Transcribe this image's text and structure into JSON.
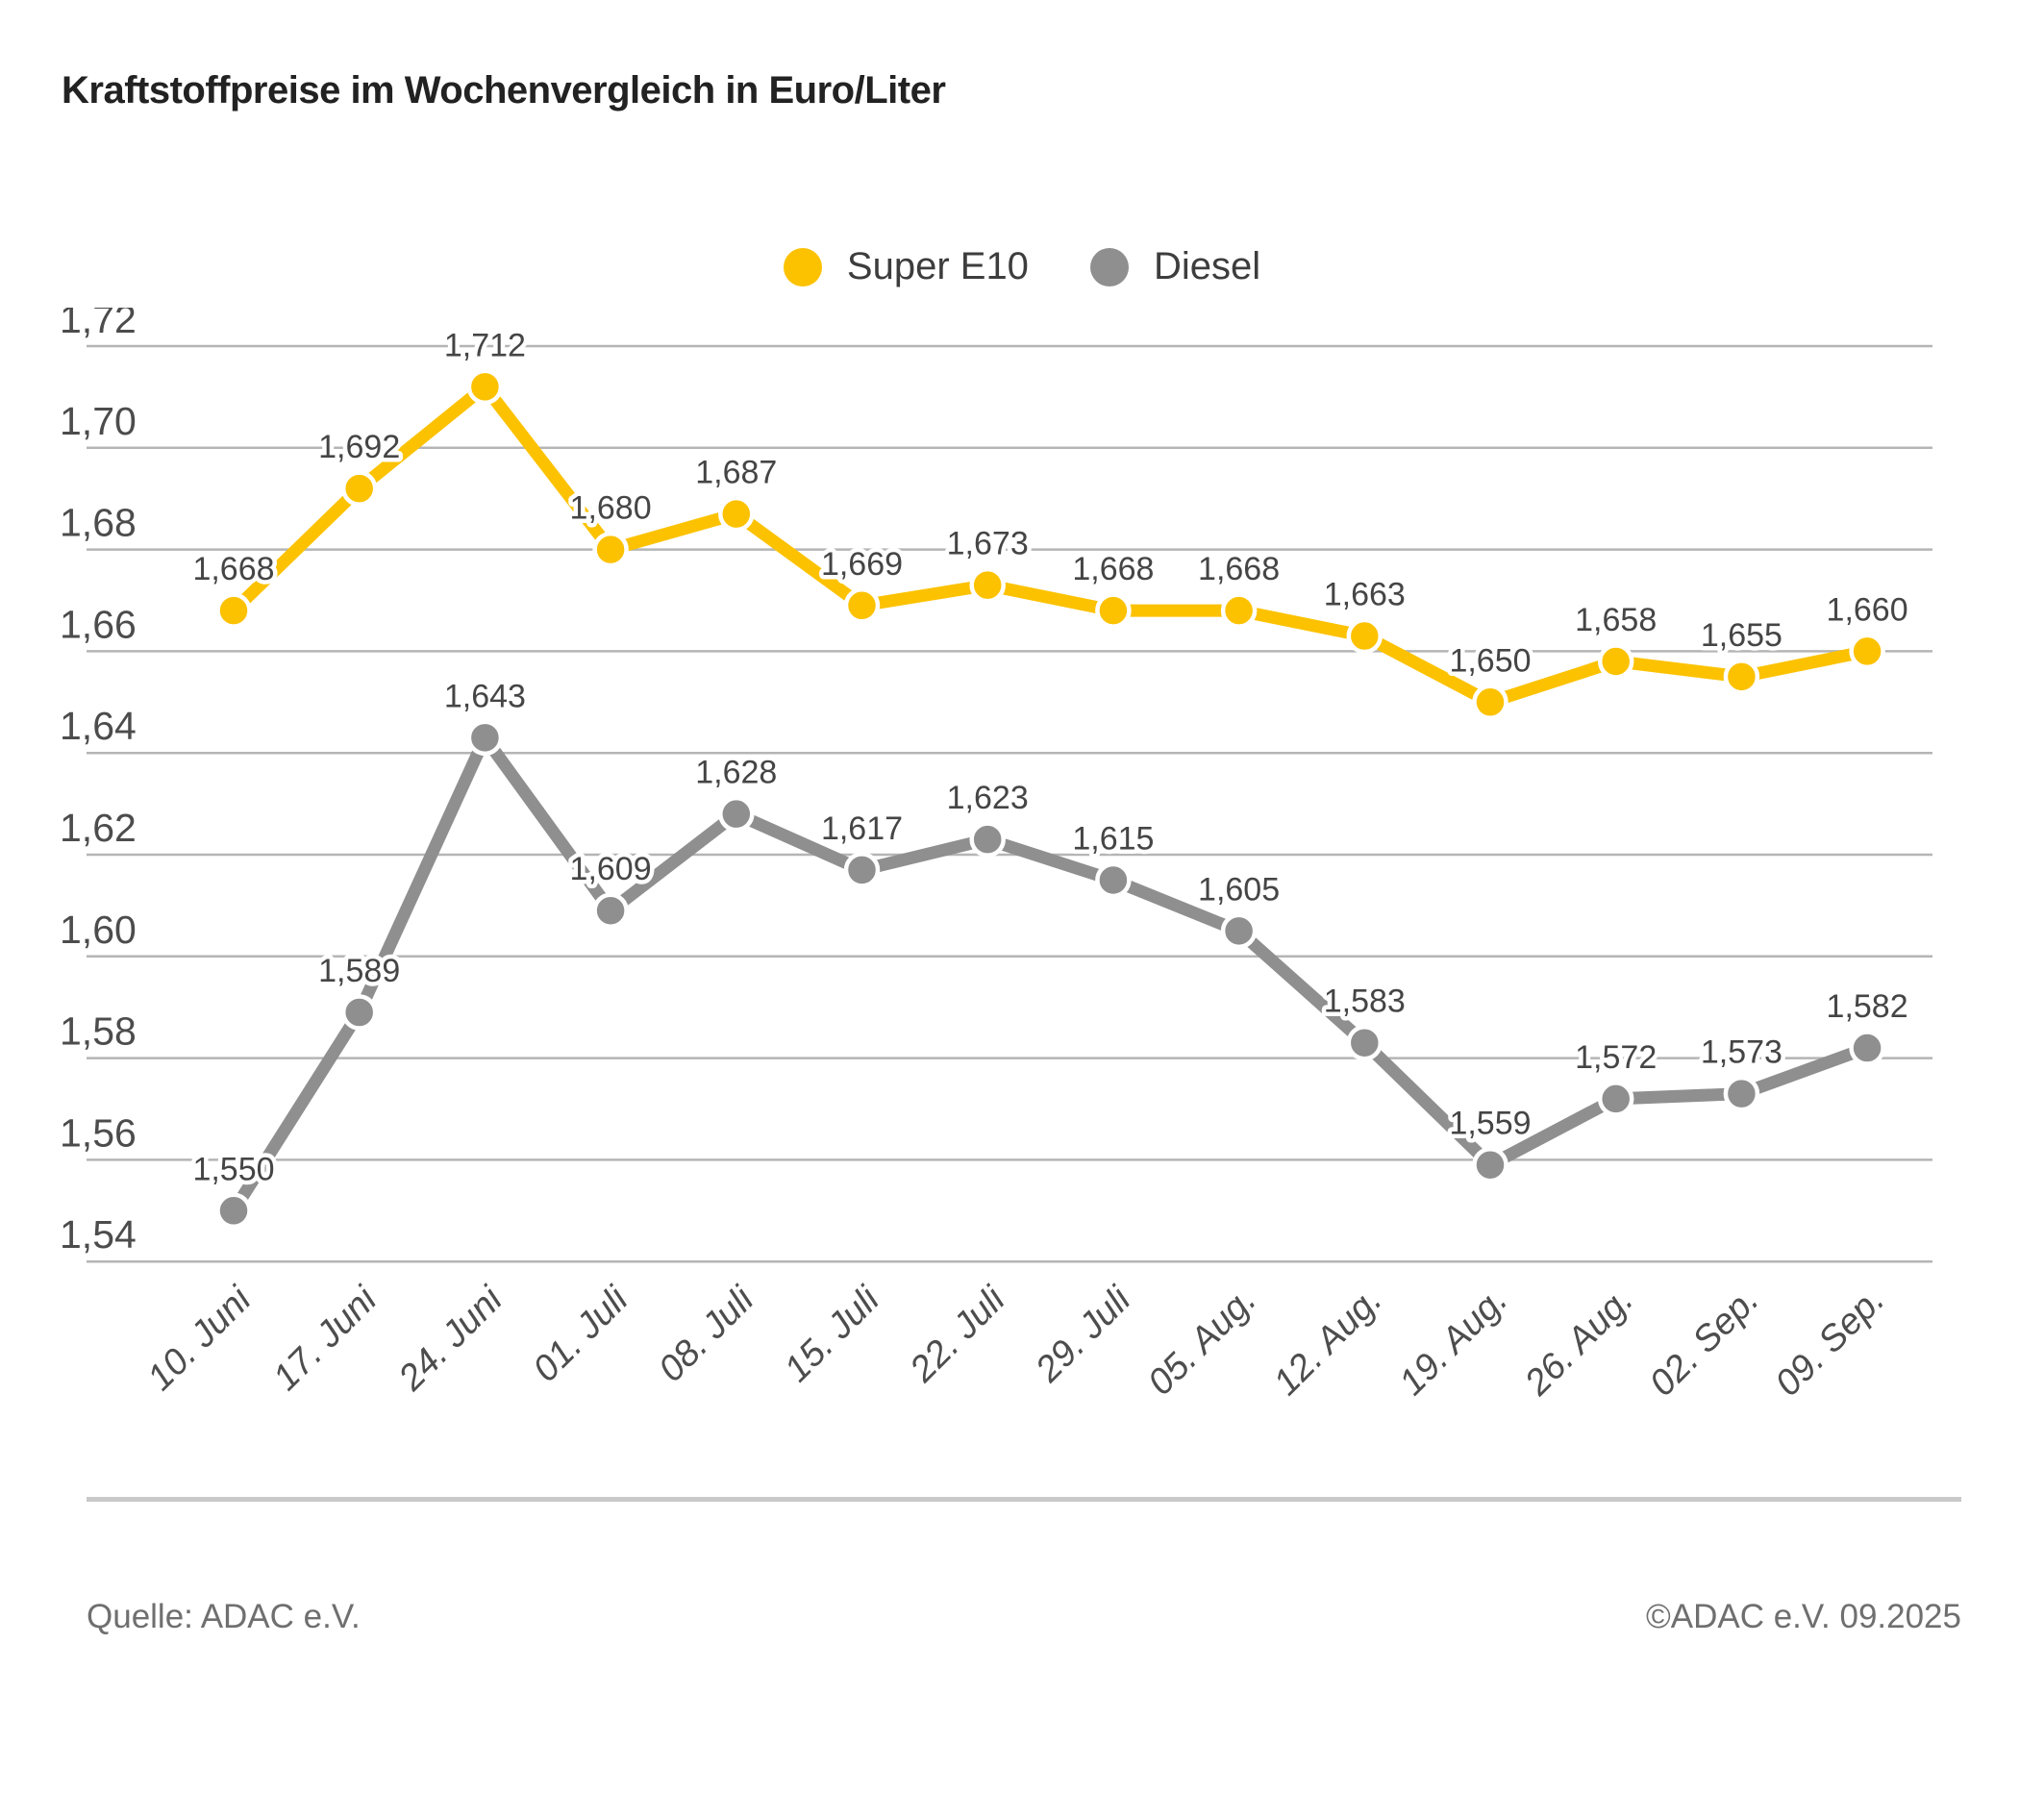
{
  "title": "Kraftstoffpreise im Wochenvergleich in Euro/Liter",
  "legend": {
    "items": [
      {
        "label": "Super E10",
        "color": "#fcc200"
      },
      {
        "label": "Diesel",
        "color": "#8f8f8f"
      }
    ]
  },
  "footer": {
    "source": "Quelle: ADAC e.V.",
    "copyright": "©ADAC e.V. 09.2025"
  },
  "colors": {
    "super_e10": "#fcc200",
    "diesel": "#8f8f8f",
    "gridline": "#b5b5b5",
    "tick_label": "#4c4c4c",
    "value_label": "#454545",
    "date_label": "#4d4d4d"
  },
  "chart_data": {
    "type": "line",
    "title": "Kraftstoffpreise im Wochenvergleich in Euro/Liter",
    "xlabel": "",
    "ylabel": "Euro/Liter",
    "grid": true,
    "legend_position": "top-center",
    "categories": [
      "10. Juni",
      "17. Juni",
      "24. Juni",
      "01. Juli",
      "08. Juli",
      "15. Juli",
      "22. Juli",
      "29. Juli",
      "05. Aug.",
      "12. Aug.",
      "19. Aug.",
      "26. Aug.",
      "02. Sep.",
      "09. Sep."
    ],
    "series": [
      {
        "name": "Super E10",
        "color": "#fcc200",
        "values": [
          1.668,
          1.692,
          1.712,
          1.68,
          1.687,
          1.669,
          1.673,
          1.668,
          1.668,
          1.663,
          1.65,
          1.658,
          1.655,
          1.66
        ],
        "labels": [
          "1,668",
          "1,692",
          "1,712",
          "1,680",
          "1,687",
          "1,669",
          "1,673",
          "1,668",
          "1,668",
          "1,663",
          "1,650",
          "1,658",
          "1,655",
          "1,660"
        ]
      },
      {
        "name": "Diesel",
        "color": "#8f8f8f",
        "values": [
          1.55,
          1.589,
          1.643,
          1.609,
          1.628,
          1.617,
          1.623,
          1.615,
          1.605,
          1.583,
          1.559,
          1.572,
          1.573,
          1.582
        ],
        "labels": [
          "1,550",
          "1,589",
          "1,643",
          "1,609",
          "1,628",
          "1,617",
          "1,623",
          "1,615",
          "1,605",
          "1,583",
          "1,559",
          "1,572",
          "1,573",
          "1,582"
        ]
      }
    ],
    "y_axis": {
      "min": 1.53,
      "max": 1.72,
      "tick_step": 0.02,
      "tick_values": [
        1.72,
        1.7,
        1.68,
        1.66,
        1.64,
        1.62,
        1.6,
        1.58,
        1.56,
        1.54
      ],
      "ticks": [
        "1,72",
        "1,70",
        "1,68",
        "1,66",
        "1,64",
        "1,62",
        "1,60",
        "1,58",
        "1,56",
        "1,54"
      ]
    }
  }
}
